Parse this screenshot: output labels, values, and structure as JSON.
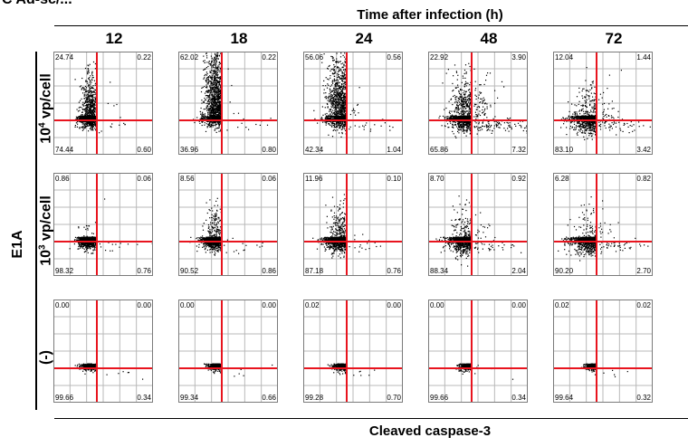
{
  "panel_label": "C  Ad-sc/... ",
  "header": {
    "title": "Time after infection (h)"
  },
  "columns": [
    "12",
    "18",
    "24",
    "48",
    "72"
  ],
  "group_label": "E1A",
  "rows": [
    {
      "label_base": "10",
      "label_sup": "4",
      "label_rest": " vp/cell"
    },
    {
      "label_base": "10",
      "label_sup": "3",
      "label_rest": " vp/cell"
    },
    {
      "label_base": "(-)",
      "label_sup": "",
      "label_rest": ""
    }
  ],
  "x_axis_title": "Cleaved caspase-3",
  "colors": {
    "gate": "#e8141e",
    "grid": "#b8b8b8",
    "frame": "#7a7a7a",
    "dots": "#000000"
  },
  "chart_data": {
    "type": "scatter",
    "grid": true,
    "column_labels": [
      "12",
      "18",
      "24",
      "48",
      "72"
    ],
    "row_labels": [
      "10^4 vp/cell",
      "10^3 vp/cell",
      "(-)"
    ],
    "xlabel": "Cleaved caspase-3",
    "quadrant_percentages": [
      [
        {
          "ul": "24.74",
          "ur": "0.22",
          "ll": "74.44",
          "lr": "0.60"
        },
        {
          "ul": "62.02",
          "ur": "0.22",
          "ll": "36.96",
          "lr": "0.80"
        },
        {
          "ul": "56.06",
          "ur": "0.56",
          "ll": "42.34",
          "lr": "1.04"
        },
        {
          "ul": "22.92",
          "ur": "3.90",
          "ll": "65.86",
          "lr": "7.32"
        },
        {
          "ul": "12.04",
          "ur": "1.44",
          "ll": "83.10",
          "lr": "3.42"
        }
      ],
      [
        {
          "ul": "0.86",
          "ur": "0.06",
          "ll": "98.32",
          "lr": "0.76"
        },
        {
          "ul": "8.56",
          "ur": "0.06",
          "ll": "90.52",
          "lr": "0.86"
        },
        {
          "ul": "11.96",
          "ur": "0.10",
          "ll": "87.18",
          "lr": "0.76"
        },
        {
          "ul": "8.70",
          "ur": "0.92",
          "ll": "88.34",
          "lr": "2.04"
        },
        {
          "ul": "6.28",
          "ur": "0.82",
          "ll": "90.20",
          "lr": "2.70"
        }
      ],
      [
        {
          "ul": "0.00",
          "ur": "0.00",
          "ll": "99.66",
          "lr": "0.34"
        },
        {
          "ul": "0.00",
          "ur": "0.00",
          "ll": "99.34",
          "lr": "0.66"
        },
        {
          "ul": "0.02",
          "ur": "0.00",
          "ll": "99.28",
          "lr": "0.70"
        },
        {
          "ul": "0.00",
          "ur": "0.00",
          "ll": "99.66",
          "lr": "0.34"
        },
        {
          "ul": "0.02",
          "ur": "0.02",
          "ll": "99.64",
          "lr": "0.32"
        }
      ]
    ]
  }
}
